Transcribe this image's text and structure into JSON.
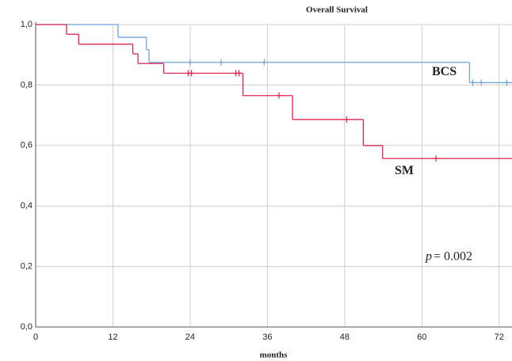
{
  "chart_data": {
    "type": "survival",
    "title": "Overall Survival",
    "x_label": "months",
    "xlim": [
      0,
      74
    ],
    "xticks": [
      0,
      12,
      24,
      36,
      48,
      60,
      72
    ],
    "ylim": [
      0,
      1
    ],
    "yticks": [
      {
        "value": 0,
        "label": "0,0"
      },
      {
        "value": 0.2,
        "label": "0,2"
      },
      {
        "value": 0.4,
        "label": "0,4"
      },
      {
        "value": 0.6,
        "label": "0,6"
      },
      {
        "value": 0.8,
        "label": "0,8"
      },
      {
        "value": 1,
        "label": "1,0"
      }
    ],
    "grid": true,
    "series": [
      {
        "name": "BCS",
        "color": "#6fa3d8",
        "x": [
          0,
          12.8,
          17.2,
          17.6,
          67.4
        ],
        "values": [
          1.0,
          0.958,
          0.917,
          0.875,
          0.808
        ],
        "censored_x": [
          24,
          28.8,
          35.5,
          67.9,
          69.2,
          73.2
        ],
        "censored_values": [
          0.875,
          0.875,
          0.875,
          0.808,
          0.808,
          0.808
        ]
      },
      {
        "name": "SM",
        "color": "#e0234e",
        "x": [
          0,
          4.8,
          6.7,
          15.1,
          15.9,
          19.9,
          32.2,
          39.9,
          50.9,
          53.9
        ],
        "values": [
          1.0,
          0.968,
          0.935,
          0.903,
          0.871,
          0.839,
          0.765,
          0.686,
          0.6,
          0.557
        ],
        "censored_x": [
          23.7,
          24.2,
          31.1,
          31.6,
          37.8,
          48.3,
          62.2
        ],
        "censored_values": [
          0.839,
          0.839,
          0.839,
          0.839,
          0.765,
          0.686,
          0.557
        ]
      }
    ],
    "p_symbol": "p",
    "p_text": "= 0.002"
  }
}
